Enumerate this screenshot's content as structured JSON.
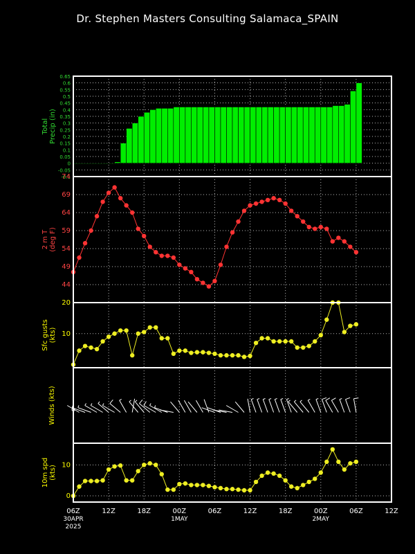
{
  "title": "Dr. Stephen Masters Consulting   Salamaca_SPAIN",
  "colors": {
    "background": "#000000",
    "frame": "#ffffff",
    "grid": "#bbbbbb",
    "precip": "#00ee00",
    "temp": "#ff3333",
    "gust": "#eeee22",
    "wind_label": "#ffff00",
    "precip_label": "#33dd33",
    "temp_label": "#ff4444"
  },
  "x_axis": {
    "labels": [
      "06Z",
      "12Z",
      "18Z",
      "00Z",
      "06Z",
      "12Z",
      "18Z",
      "00Z",
      "06Z",
      "12Z"
    ],
    "hours": [
      0,
      6,
      12,
      18,
      24,
      30,
      36,
      42,
      48,
      54
    ],
    "date_labels": [
      {
        "hour": 0,
        "line1": "30APR",
        "line2": "2025"
      },
      {
        "hour": 18,
        "line1": "1MAY",
        "line2": ""
      },
      {
        "hour": 42,
        "line1": "2MAY",
        "line2": ""
      }
    ],
    "range": [
      0,
      54
    ]
  },
  "chart_data": [
    {
      "type": "bar",
      "name": "precip",
      "ylabel_lines": [
        "Total",
        "Precip (in)"
      ],
      "ylim": [
        -0.1,
        0.65
      ],
      "ticks": [
        -0.1,
        -0.05,
        0,
        0.05,
        0.1,
        0.15,
        0.2,
        0.25,
        0.3,
        0.35,
        0.4,
        0.45,
        0.5,
        0.55,
        0.6,
        0.65
      ],
      "tick_labels": [
        "-0.1",
        "-0.05",
        "0",
        "0.05",
        "0.1",
        "0.15",
        "0.2",
        "0.25",
        "0.3",
        "0.35",
        "0.4",
        "0.45",
        "0.5",
        "0.55",
        "0.6",
        "0.65"
      ],
      "hours": [
        0,
        1,
        2,
        3,
        4,
        5,
        6,
        7,
        8,
        9,
        10,
        11,
        12,
        13,
        14,
        15,
        16,
        17,
        18,
        19,
        20,
        21,
        22,
        23,
        24,
        25,
        26,
        27,
        28,
        29,
        30,
        31,
        32,
        33,
        34,
        35,
        36,
        37,
        38,
        39,
        40,
        41,
        42,
        43,
        44,
        45,
        46,
        47,
        48
      ],
      "values": [
        0,
        0,
        0,
        0,
        0,
        0,
        0,
        0.01,
        0.15,
        0.26,
        0.3,
        0.35,
        0.38,
        0.4,
        0.41,
        0.41,
        0.41,
        0.42,
        0.42,
        0.42,
        0.42,
        0.42,
        0.42,
        0.42,
        0.42,
        0.42,
        0.42,
        0.42,
        0.42,
        0.42,
        0.42,
        0.42,
        0.42,
        0.42,
        0.42,
        0.42,
        0.42,
        0.42,
        0.42,
        0.42,
        0.42,
        0.42,
        0.42,
        0.42,
        0.43,
        0.43,
        0.44,
        0.54,
        0.6
      ]
    },
    {
      "type": "line",
      "name": "temp",
      "ylabel_lines": [
        "2 m T",
        "(deg F)"
      ],
      "ylim": [
        39,
        74
      ],
      "ticks": [
        44,
        49,
        54,
        59,
        64,
        69,
        74
      ],
      "tick_labels": [
        "44",
        "49",
        "54",
        "59",
        "64",
        "69",
        "74"
      ],
      "hours": [
        0,
        1,
        2,
        3,
        4,
        5,
        6,
        7,
        8,
        9,
        10,
        11,
        12,
        13,
        14,
        15,
        16,
        17,
        18,
        19,
        20,
        21,
        22,
        23,
        24,
        25,
        26,
        27,
        28,
        29,
        30,
        31,
        32,
        33,
        34,
        35,
        36,
        37,
        38,
        39,
        40,
        41,
        42,
        43,
        44,
        45,
        46,
        47,
        48
      ],
      "values": [
        47.5,
        51.5,
        55.5,
        59,
        63,
        67,
        69.5,
        71,
        68,
        66,
        64,
        59.5,
        57.5,
        54.5,
        53,
        52,
        52,
        51.5,
        49.5,
        48.5,
        47.5,
        45.5,
        44.5,
        43.5,
        45,
        49.5,
        54.5,
        58.5,
        61.5,
        64.5,
        66,
        66.5,
        67,
        67.5,
        68,
        67.5,
        66.5,
        64.5,
        63,
        61.5,
        60,
        59.5,
        60,
        59.5,
        56,
        57,
        56,
        54.5,
        53
      ]
    },
    {
      "type": "line",
      "name": "gusts",
      "ylabel_lines": [
        "Sfc gusts",
        "(kts)"
      ],
      "ylim": [
        -1,
        20
      ],
      "ticks": [
        10,
        20
      ],
      "tick_labels": [
        "10",
        "20"
      ],
      "hours": [
        0,
        1,
        2,
        3,
        4,
        5,
        6,
        7,
        8,
        9,
        10,
        11,
        12,
        13,
        14,
        15,
        16,
        17,
        18,
        19,
        20,
        21,
        22,
        23,
        24,
        25,
        26,
        27,
        28,
        29,
        30,
        31,
        32,
        33,
        34,
        35,
        36,
        37,
        38,
        39,
        40,
        41,
        42,
        43,
        44,
        45,
        46,
        47,
        48
      ],
      "values": [
        0,
        4.5,
        6,
        5.5,
        5,
        7.5,
        9,
        10,
        11,
        11,
        3,
        10,
        10.5,
        12,
        12,
        8.5,
        8.5,
        3.5,
        4.5,
        4.5,
        3.8,
        4,
        4,
        3.8,
        3.5,
        3,
        3,
        3,
        3,
        2.5,
        2.8,
        7,
        8.5,
        8.5,
        7.5,
        7.5,
        7.5,
        7.5,
        5.5,
        5.5,
        6,
        7.5,
        9.5,
        14.5,
        20,
        20,
        10.5,
        12.5,
        13
      ]
    },
    {
      "type": "barbs",
      "name": "winds",
      "ylabel_lines": [
        "Winds (kts)"
      ],
      "hours": [
        0,
        1,
        2,
        3,
        4,
        5,
        6,
        7,
        8,
        9,
        10,
        11,
        12,
        13,
        14,
        15,
        16,
        17,
        18,
        19,
        20,
        21,
        22,
        23,
        24,
        25,
        26,
        27,
        28,
        29,
        30,
        31,
        32,
        33,
        34,
        35,
        36,
        37,
        38,
        39,
        40,
        41,
        42,
        43,
        44,
        45,
        46,
        47,
        48
      ],
      "speeds": [
        0,
        3,
        5,
        5,
        5,
        7,
        8,
        9,
        10,
        9,
        4,
        8,
        9,
        11,
        11,
        8,
        7,
        3,
        4,
        4,
        3,
        3,
        3,
        3,
        2,
        2,
        2,
        2,
        2,
        2,
        2,
        5,
        7,
        7,
        6,
        6,
        6,
        6,
        5,
        5,
        5,
        6,
        8,
        11,
        14,
        12,
        9,
        10,
        11
      ],
      "directions": [
        0,
        300,
        290,
        290,
        300,
        300,
        310,
        300,
        310,
        330,
        10,
        320,
        320,
        310,
        300,
        300,
        290,
        280,
        320,
        330,
        330,
        320,
        330,
        340,
        290,
        290,
        280,
        280,
        300,
        320,
        350,
        340,
        340,
        340,
        340,
        340,
        340,
        340,
        320,
        320,
        320,
        330,
        340,
        340,
        330,
        330,
        340,
        340,
        350
      ]
    },
    {
      "type": "line",
      "name": "wind10m",
      "ylabel_lines": [
        "10m spd",
        "(kts)"
      ],
      "ylim": [
        -2,
        17
      ],
      "ticks": [
        0,
        10
      ],
      "tick_labels": [
        "0",
        "10"
      ],
      "hours": [
        0,
        1,
        2,
        3,
        4,
        5,
        6,
        7,
        8,
        9,
        10,
        11,
        12,
        13,
        14,
        15,
        16,
        17,
        18,
        19,
        20,
        21,
        22,
        23,
        24,
        25,
        26,
        27,
        28,
        29,
        30,
        31,
        32,
        33,
        34,
        35,
        36,
        37,
        38,
        39,
        40,
        41,
        42,
        43,
        44,
        45,
        46,
        47,
        48
      ],
      "values": [
        0,
        3,
        4.8,
        4.8,
        4.8,
        5,
        8.5,
        9.5,
        9.8,
        5,
        5,
        8,
        10,
        10.5,
        10,
        7,
        2,
        2,
        3.8,
        4,
        3.5,
        3.5,
        3.5,
        3.2,
        2.8,
        2.5,
        2.2,
        2.2,
        2,
        1.8,
        1.8,
        4.5,
        6.5,
        7.5,
        7.2,
        6.5,
        5,
        3,
        2.5,
        3.5,
        4.5,
        5.5,
        7.5,
        11,
        15,
        11,
        8.5,
        10.5,
        11
      ]
    }
  ]
}
